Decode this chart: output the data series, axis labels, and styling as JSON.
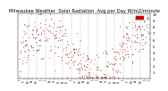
{
  "title": "Milwaukee Weather  Solar Radiation  Avg per Day W/m2/minute",
  "title_fontsize": 3.8,
  "bg_color": "#ffffff",
  "plot_bg": "#ffffff",
  "dot_color_red": "#cc0000",
  "dot_color_black": "#000000",
  "legend_color": "#cc0000",
  "legend_label": "1",
  "ylim": [
    0,
    10
  ],
  "yticks": [
    1,
    2,
    3,
    4,
    5,
    6,
    7,
    8,
    9,
    10
  ],
  "ytick_fontsize": 2.8,
  "xtick_fontsize": 2.2,
  "grid_color": "#bbbbbb",
  "grid_style": "--",
  "grid_linewidth": 0.35,
  "num_points": 370,
  "seed": 7
}
